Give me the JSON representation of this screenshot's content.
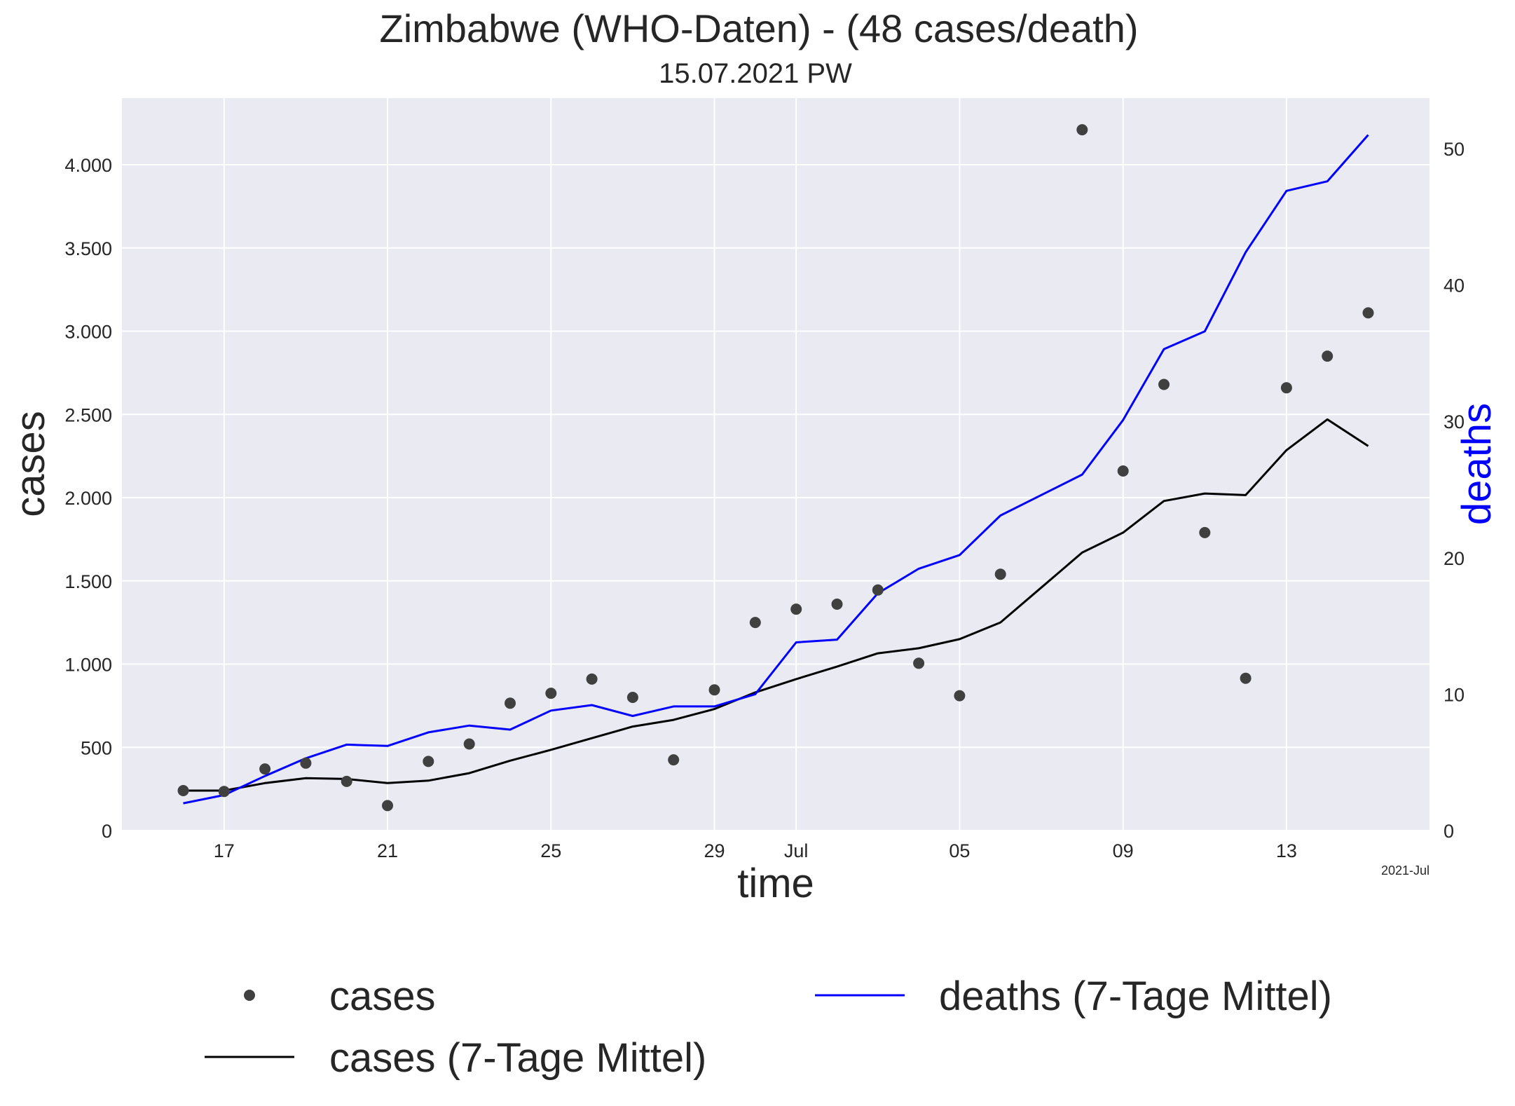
{
  "chart_data": {
    "type": "line",
    "title": "Zimbabwe (WHO-Daten) - (48 cases/death)",
    "subtitle": "15.07.2021 PW",
    "xlabel": "time",
    "ylabel": "cases",
    "ylabel_right": "deaths",
    "x_offset_label": "2021-Jul",
    "x_tick_labels": [
      "17",
      "21",
      "25",
      "29",
      "Jul",
      "05",
      "09",
      "13"
    ],
    "x_tick_dates": [
      "2021-06-17",
      "2021-06-21",
      "2021-06-25",
      "2021-06-29",
      "2021-07-01",
      "2021-07-05",
      "2021-07-09",
      "2021-07-13"
    ],
    "x": [
      "2021-06-16",
      "2021-06-17",
      "2021-06-18",
      "2021-06-19",
      "2021-06-20",
      "2021-06-21",
      "2021-06-22",
      "2021-06-23",
      "2021-06-24",
      "2021-06-25",
      "2021-06-26",
      "2021-06-27",
      "2021-06-28",
      "2021-06-29",
      "2021-06-30",
      "2021-07-01",
      "2021-07-02",
      "2021-07-03",
      "2021-07-04",
      "2021-07-05",
      "2021-07-06",
      "2021-07-07",
      "2021-07-08",
      "2021-07-09",
      "2021-07-10",
      "2021-07-11",
      "2021-07-12",
      "2021-07-13",
      "2021-07-14",
      "2021-07-15"
    ],
    "xlim": [
      "2021-06-14T12:00",
      "2021-07-16T12:00"
    ],
    "ylim": [
      0,
      4400
    ],
    "ylim_right": [
      0,
      53.7
    ],
    "y_ticks": [
      0,
      500,
      1000,
      1500,
      2000,
      2500,
      3000,
      3500,
      4000
    ],
    "y_tick_labels": [
      "0",
      "500",
      "1.000",
      "1.500",
      "2.000",
      "2.500",
      "3.000",
      "3.500",
      "4.000"
    ],
    "y_ticks_right": [
      0,
      10,
      20,
      30,
      40,
      50
    ],
    "y_tick_labels_right": [
      "0",
      "10",
      "20",
      "30",
      "40",
      "50"
    ],
    "grid": true,
    "legend_position": "bottom",
    "series": [
      {
        "name": "cases",
        "kind": "scatter",
        "axis": "left",
        "color": "#404040",
        "values": [
          240,
          235,
          370,
          405,
          295,
          150,
          415,
          520,
          765,
          825,
          910,
          800,
          425,
          845,
          1250,
          1330,
          1360,
          1445,
          1005,
          810,
          1540,
          null,
          4210,
          2160,
          2680,
          1790,
          915,
          2660,
          2850,
          3110
        ]
      },
      {
        "name": "cases (7-Tage Mittel)",
        "kind": "line",
        "axis": "left",
        "color": "#000000",
        "values": [
          240,
          240,
          285,
          315,
          310,
          285,
          300,
          345,
          420,
          485,
          555,
          625,
          665,
          730,
          830,
          910,
          985,
          1065,
          1095,
          1150,
          1250,
          1460,
          1670,
          1790,
          1980,
          2025,
          2015,
          2285,
          2470,
          2310
        ]
      },
      {
        "name": "deaths (7-Tage Mittel)",
        "kind": "line",
        "axis": "right",
        "color": "#0000ff",
        "values": [
          2.0,
          2.6,
          4.0,
          5.3,
          6.3,
          6.2,
          7.2,
          7.7,
          7.4,
          8.8,
          9.2,
          8.4,
          9.1,
          9.1,
          10.0,
          13.8,
          14.0,
          17.4,
          19.2,
          20.2,
          23.1,
          24.6,
          26.1,
          30.1,
          35.3,
          36.6,
          42.4,
          46.9,
          47.6,
          51.0
        ]
      }
    ]
  },
  "legend": {
    "items": [
      {
        "label": "cases",
        "kind": "marker",
        "color": "#404040"
      },
      {
        "label": "cases (7-Tage Mittel)",
        "kind": "line",
        "color": "#000000"
      },
      {
        "label": "deaths (7-Tage Mittel)",
        "kind": "line",
        "color": "#0000ff"
      }
    ]
  },
  "colors": {
    "plot_background": "#eaeaf2",
    "grid": "#ffffff",
    "right_axis_label": "#0000ff"
  }
}
